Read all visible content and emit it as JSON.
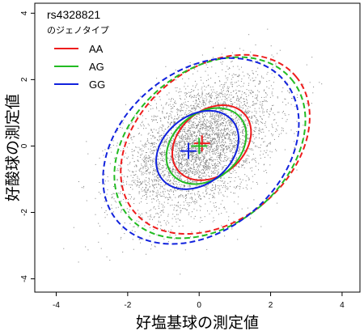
{
  "chart_data": {
    "type": "scatter",
    "xlabel": "好塩基球の測定値",
    "ylabel": "好酸球の測定値",
    "xlim": [
      -4.6,
      4.5
    ],
    "ylim": [
      -4.4,
      4.3
    ],
    "xticks": [
      -4,
      -2,
      0,
      2,
      4
    ],
    "yticks": [
      -4,
      -2,
      0,
      2,
      4
    ],
    "grid": false,
    "legend": {
      "placement": "top-left",
      "title": "rs4328821",
      "subtitle": "のジェノタイプ",
      "entries": [
        "AA",
        "AG",
        "GG"
      ]
    },
    "background_points": {
      "description_free": true,
      "color": "#7f7f7f",
      "count": 4200,
      "mean": [
        0.0,
        0.0
      ],
      "sd": [
        1.05,
        1.05
      ],
      "correlation": 0.45,
      "range": [
        [
          -3.8,
          3.6
        ],
        [
          -3.9,
          3.7
        ]
      ]
    },
    "series": [
      {
        "name": "AA",
        "color": "#ee1c1c",
        "center": [
          0.08,
          0.08
        ],
        "inner_ellipse": {
          "cx": 0.35,
          "cy": 0.1,
          "rx": 1.22,
          "ry": 0.98,
          "angle": 40
        },
        "outer_ellipse": {
          "cx": 0.45,
          "cy": 0.05,
          "rx": 2.95,
          "ry": 2.3,
          "angle": 40
        }
      },
      {
        "name": "AG",
        "color": "#22bb22",
        "center": [
          0.0,
          0.0
        ],
        "inner_ellipse": {
          "cx": 0.2,
          "cy": 0.0,
          "rx": 1.24,
          "ry": 0.99,
          "angle": 40
        },
        "outer_ellipse": {
          "cx": 0.3,
          "cy": -0.05,
          "rx": 2.98,
          "ry": 2.33,
          "angle": 40
        }
      },
      {
        "name": "GG",
        "color": "#1122dd",
        "center": [
          -0.3,
          -0.15
        ],
        "inner_ellipse": {
          "cx": -0.05,
          "cy": -0.12,
          "rx": 1.28,
          "ry": 1.02,
          "angle": 40
        },
        "outer_ellipse": {
          "cx": 0.05,
          "cy": -0.15,
          "rx": 3.05,
          "ry": 2.4,
          "angle": 40
        }
      }
    ]
  }
}
